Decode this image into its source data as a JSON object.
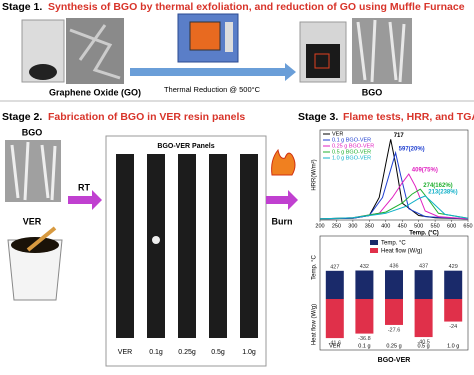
{
  "stage1": {
    "label": "Stage 1.",
    "title": "Synthesis of BGO by thermal exfoliation, and reduction of GO using Muffle Furnace",
    "go_label": "Graphene Oxide (GO)",
    "process_label": "Thermal Reduction @ 500°C",
    "bgo_label": "BGO"
  },
  "stage2": {
    "label": "Stage 2.",
    "title": "Fabrication of BGO in VER resin panels",
    "bgo_label": "BGO",
    "ver_label": "VER",
    "rt_label": "RT",
    "panels_title": "BGO-VER Panels",
    "panels": [
      "VER",
      "0.1g",
      "0.25g",
      "0.5g",
      "1.0g"
    ],
    "burn_label": "Burn"
  },
  "stage3": {
    "label": "Stage 3.",
    "title": "Flame tests, HRR, and TGA"
  },
  "chart_data": [
    {
      "type": "line",
      "y_label": "HRR(W/m²)",
      "x_label": "Temp. (°C)",
      "xlim": [
        200,
        650
      ],
      "xticks": [
        200,
        250,
        300,
        350,
        400,
        450,
        500,
        550,
        600,
        650
      ],
      "ylim": [
        0,
        800
      ],
      "series": [
        {
          "name": "VER",
          "color": "#000000",
          "label": "717",
          "x": [
            200,
            300,
            350,
            380,
            400,
            415,
            430,
            450,
            500,
            550,
            650
          ],
          "values": [
            10,
            15,
            40,
            200,
            500,
            717,
            500,
            150,
            40,
            20,
            10
          ]
        },
        {
          "name": "0.1 g BGO-VER",
          "color": "#1f3fd0",
          "label": "597(20%)",
          "x": [
            200,
            300,
            350,
            390,
            410,
            430,
            445,
            470,
            520,
            650
          ],
          "values": [
            10,
            15,
            40,
            200,
            400,
            597,
            400,
            100,
            30,
            10
          ]
        },
        {
          "name": "0.25 g BGO-VER",
          "color": "#e020c0",
          "label": "409(75%)",
          "x": [
            200,
            300,
            380,
            420,
            450,
            470,
            490,
            520,
            560,
            650
          ],
          "values": [
            10,
            20,
            60,
            200,
            330,
            409,
            300,
            80,
            30,
            10
          ]
        },
        {
          "name": "0.5 g BGO-VER",
          "color": "#20b030",
          "label": "274(162%)",
          "x": [
            200,
            300,
            400,
            450,
            480,
            505,
            525,
            560,
            650
          ],
          "values": [
            10,
            20,
            70,
            150,
            230,
            274,
            200,
            60,
            15
          ]
        },
        {
          "name": "1.0 g BGO-VER",
          "color": "#10b0c8",
          "label": "213(238%)",
          "x": [
            200,
            300,
            400,
            460,
            500,
            520,
            540,
            580,
            650
          ],
          "values": [
            10,
            20,
            60,
            120,
            190,
            213,
            160,
            50,
            15
          ]
        }
      ]
    },
    {
      "type": "bar",
      "x_label": "BGO-VER",
      "y_label": "Temp. °C",
      "y2_label": "Heat flow (W/g)",
      "categories": [
        "VER",
        "0.1 g",
        "0.25 g",
        "0.5 g",
        "1.0 g"
      ],
      "ylim": [
        0,
        500
      ],
      "y2lim": [
        -50,
        0
      ],
      "series": [
        {
          "name": "Temp. °C",
          "color": "#1a2a6a",
          "values": [
            427,
            432,
            436,
            437,
            429
          ]
        },
        {
          "name": "Heat flow (W/g)",
          "color": "#e0304a",
          "axis": "y2",
          "values": [
            -41.6,
            -36.8,
            -27.6,
            -40.5,
            -24
          ]
        }
      ]
    }
  ]
}
